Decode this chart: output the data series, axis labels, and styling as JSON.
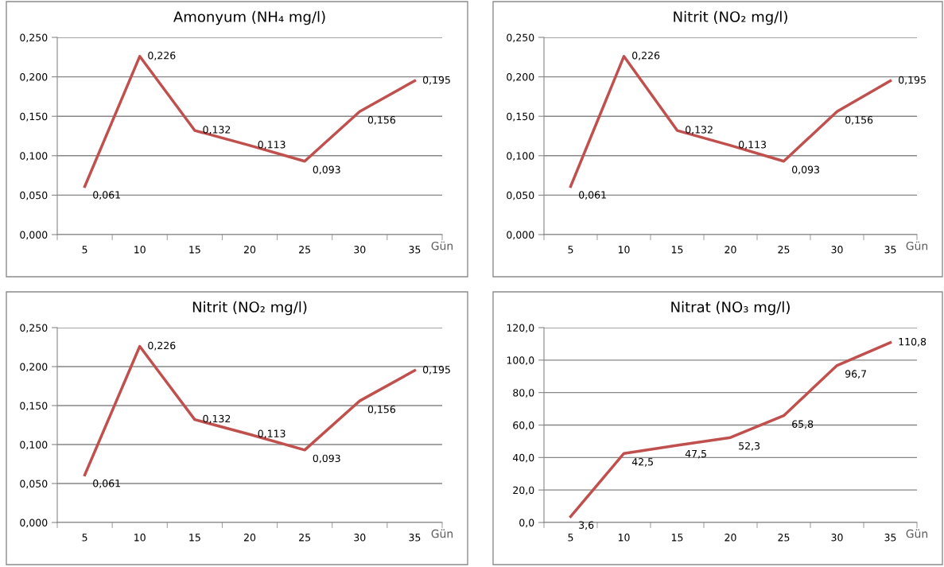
{
  "chart_data": [
    {
      "type": "line",
      "title": "Amonyum (NH₄ mg/l)",
      "xlabel": "Gün",
      "categories": [
        "5",
        "10",
        "15",
        "20",
        "25",
        "30",
        "35"
      ],
      "series": [
        {
          "color": "#c0504d",
          "values": [
            0.061,
            0.226,
            0.132,
            0.113,
            0.093,
            0.156,
            0.195
          ],
          "value_labels": [
            "0,061",
            "0,226",
            "0,132",
            "0,113",
            "0,093",
            "0,156",
            "0,195"
          ]
        }
      ],
      "ylim": [
        0,
        0.25
      ],
      "yticks": [
        {
          "value": 0,
          "label": "0,000"
        },
        {
          "value": 0.05,
          "label": "0,050"
        },
        {
          "value": 0.1,
          "label": "0,100"
        },
        {
          "value": 0.15,
          "label": "0,150"
        },
        {
          "value": 0.2,
          "label": "0,200"
        },
        {
          "value": 0.25,
          "label": "0,250"
        }
      ],
      "grid": "y",
      "legend": false,
      "marker": "none",
      "line_style": "solid"
    },
    {
      "type": "line",
      "title": "Nitrit (NO₂ mg/l)",
      "xlabel": "Gün",
      "categories": [
        "5",
        "10",
        "15",
        "20",
        "25",
        "30",
        "35"
      ],
      "series": [
        {
          "color": "#c0504d",
          "values": [
            0.061,
            0.226,
            0.132,
            0.113,
            0.093,
            0.156,
            0.195
          ],
          "value_labels": [
            "0,061",
            "0,226",
            "0,132",
            "0,113",
            "0,093",
            "0,156",
            "0,195"
          ]
        }
      ],
      "ylim": [
        0,
        0.25
      ],
      "yticks": [
        {
          "value": 0,
          "label": "0,000"
        },
        {
          "value": 0.05,
          "label": "0,050"
        },
        {
          "value": 0.1,
          "label": "0,100"
        },
        {
          "value": 0.15,
          "label": "0,150"
        },
        {
          "value": 0.2,
          "label": "0,200"
        },
        {
          "value": 0.25,
          "label": "0,250"
        }
      ],
      "grid": "y",
      "legend": false,
      "marker": "none",
      "line_style": "solid"
    },
    {
      "type": "line",
      "title": "Nitrit (NO₂ mg/l)",
      "xlabel": "Gün",
      "categories": [
        "5",
        "10",
        "15",
        "20",
        "25",
        "30",
        "35"
      ],
      "series": [
        {
          "color": "#c0504d",
          "values": [
            0.061,
            0.226,
            0.132,
            0.113,
            0.093,
            0.156,
            0.195
          ],
          "value_labels": [
            "0,061",
            "0,226",
            "0,132",
            "0,113",
            "0,093",
            "0,156",
            "0,195"
          ]
        }
      ],
      "ylim": [
        0,
        0.25
      ],
      "yticks": [
        {
          "value": 0,
          "label": "0,000"
        },
        {
          "value": 0.05,
          "label": "0,050"
        },
        {
          "value": 0.1,
          "label": "0,100"
        },
        {
          "value": 0.15,
          "label": "0,150"
        },
        {
          "value": 0.2,
          "label": "0,200"
        },
        {
          "value": 0.25,
          "label": "0,250"
        }
      ],
      "grid": "y",
      "legend": false,
      "marker": "none",
      "line_style": "solid"
    },
    {
      "type": "line",
      "title": "Nitrat (NO₃ mg/l)",
      "xlabel": "Gün",
      "categories": [
        "5",
        "10",
        "15",
        "20",
        "25",
        "30",
        "35"
      ],
      "series": [
        {
          "color": "#c0504d",
          "values": [
            3.6,
            42.5,
            47.5,
            52.3,
            65.8,
            96.7,
            110.8
          ],
          "value_labels": [
            "3,6",
            "42,5",
            "47,5",
            "52,3",
            "65,8",
            "96,7",
            "110,8"
          ]
        }
      ],
      "ylim": [
        0,
        120
      ],
      "yticks": [
        {
          "value": 0,
          "label": "0,0"
        },
        {
          "value": 20,
          "label": "20,0"
        },
        {
          "value": 40,
          "label": "40,0"
        },
        {
          "value": 60,
          "label": "60,0"
        },
        {
          "value": 80,
          "label": "80,0"
        },
        {
          "value": 100,
          "label": "100,0"
        },
        {
          "value": 120,
          "label": "120,0"
        }
      ],
      "grid": "y",
      "legend": false,
      "marker": "none",
      "line_style": "solid"
    }
  ]
}
